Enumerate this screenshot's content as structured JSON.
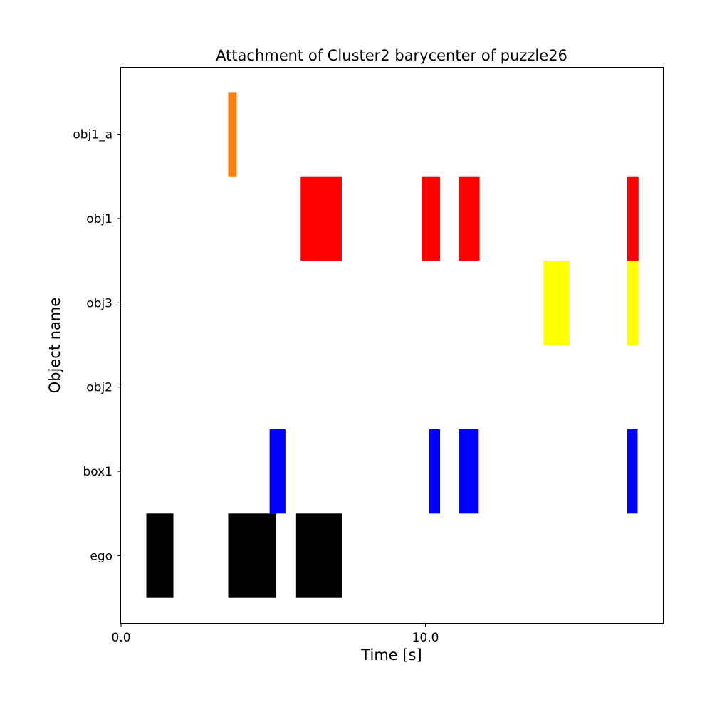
{
  "chart_data": {
    "type": "bar",
    "orientation": "horizontal-timeline",
    "title": "Attachment of Cluster2 barycenter of puzzle26",
    "xlabel": "Time [s]",
    "ylabel": "Object name",
    "xlim": [
      0.0,
      17.8
    ],
    "xticks": [
      "0.0",
      "10.0"
    ],
    "xtick_values": [
      0.0,
      10.0
    ],
    "categories": [
      "ego",
      "box1",
      "obj2",
      "obj3",
      "obj1",
      "obj1_a"
    ],
    "grid": false,
    "series": [
      {
        "category": "obj1_a",
        "color": "#ff7f0e",
        "intervals": [
          [
            3.52,
            3.8
          ]
        ]
      },
      {
        "category": "obj1",
        "color": "#ff0000",
        "intervals": [
          [
            5.9,
            7.25
          ],
          [
            9.88,
            10.48
          ],
          [
            11.1,
            11.78
          ],
          [
            16.63,
            17.0
          ]
        ]
      },
      {
        "category": "obj3",
        "color": "#ffff00",
        "intervals": [
          [
            13.88,
            14.73
          ],
          [
            16.63,
            17.0
          ]
        ]
      },
      {
        "category": "obj2",
        "color": "#008000",
        "intervals": []
      },
      {
        "category": "box1",
        "color": "#0000ff",
        "intervals": [
          [
            4.88,
            5.4
          ],
          [
            10.12,
            10.48
          ],
          [
            11.1,
            11.75
          ],
          [
            16.63,
            16.97
          ]
        ]
      },
      {
        "category": "ego",
        "color": "#000000",
        "intervals": [
          [
            0.83,
            1.72
          ],
          [
            3.52,
            5.1
          ],
          [
            5.75,
            7.25
          ]
        ]
      }
    ]
  }
}
